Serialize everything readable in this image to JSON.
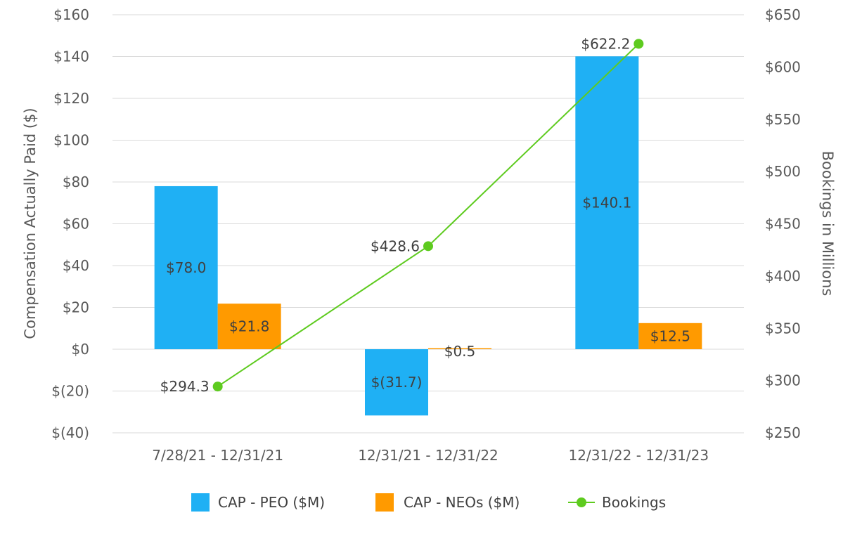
{
  "chart_data": {
    "type": "bar",
    "categories": [
      "7/28/21 - 12/31/21",
      "12/31/21 - 12/31/22",
      "12/31/22 - 12/31/23"
    ],
    "series": [
      {
        "name": "CAP - PEO ($M)",
        "kind": "bar",
        "axis": "left",
        "color": "#1fb0f4",
        "values": [
          78.0,
          -31.7,
          140.1
        ],
        "labels": [
          "$78.0",
          "$(31.7)",
          "$140.1"
        ]
      },
      {
        "name": "CAP - NEOs ($M)",
        "kind": "bar",
        "axis": "left",
        "color": "#ff9a00",
        "values": [
          21.8,
          0.5,
          12.5
        ],
        "labels": [
          "$21.8",
          "$0.5",
          "$12.5"
        ]
      },
      {
        "name": "Bookings",
        "kind": "line",
        "axis": "right",
        "color": "#5ecb1f",
        "values": [
          294.3,
          428.6,
          622.2
        ],
        "labels": [
          "$294.3",
          "$428.6",
          "$622.2"
        ]
      }
    ],
    "y_left": {
      "label": "Compensation Actually Paid ($)",
      "range": [
        -40,
        160
      ],
      "ticks": [
        160,
        140,
        120,
        100,
        80,
        60,
        40,
        20,
        0,
        -20,
        -40
      ],
      "tick_labels": [
        "$160",
        "$140",
        "$120",
        "$100",
        "$80",
        "$60",
        "$40",
        "$20",
        "$0",
        "$(20)",
        "$(40)"
      ]
    },
    "y_right": {
      "label": "Bookings in Millions",
      "range": [
        250,
        650
      ],
      "ticks": [
        650,
        600,
        550,
        500,
        450,
        400,
        350,
        300,
        250
      ],
      "tick_labels": [
        "$650",
        "$600",
        "$550",
        "$500",
        "$450",
        "$400",
        "$350",
        "$300",
        "$250"
      ]
    },
    "legend": [
      "CAP - PEO ($M)",
      "CAP - NEOs ($M)",
      "Bookings"
    ],
    "legend_position": "bottom",
    "grid": true
  }
}
